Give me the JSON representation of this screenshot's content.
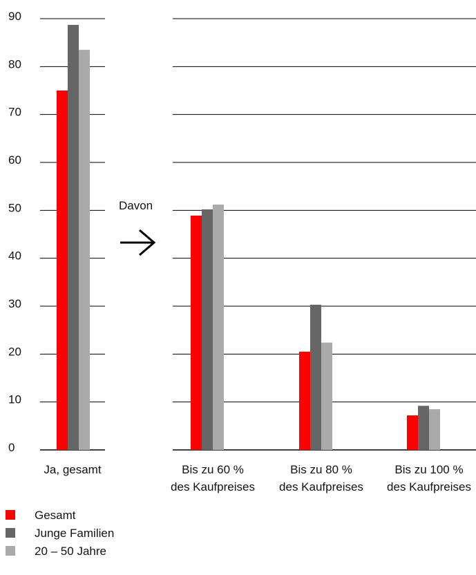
{
  "chart_data": {
    "type": "bar",
    "categories": [
      "Ja, gesamt",
      "Bis zu 60 %\ndes Kaufpreises",
      "Bis zu 80 %\ndes Kaufpreises",
      "Bis zu 100 %\ndes Kaufpreises"
    ],
    "series": [
      {
        "name": "Gesamt",
        "color": "#ff0000",
        "values": [
          75,
          48.9,
          20.5,
          7.2
        ]
      },
      {
        "name": "Junge Familien",
        "color": "#666666",
        "values": [
          88.7,
          50.2,
          30.3,
          9.2
        ]
      },
      {
        "name": "20 – 50 Jahre",
        "color": "#aaaaaa",
        "values": [
          83.5,
          51.2,
          22.4,
          8.5
        ]
      }
    ],
    "annotation": "Davon",
    "ylim": [
      0,
      90
    ],
    "yticks": [
      0,
      10,
      20,
      30,
      40,
      50,
      60,
      70,
      80,
      90
    ],
    "grid": true
  }
}
